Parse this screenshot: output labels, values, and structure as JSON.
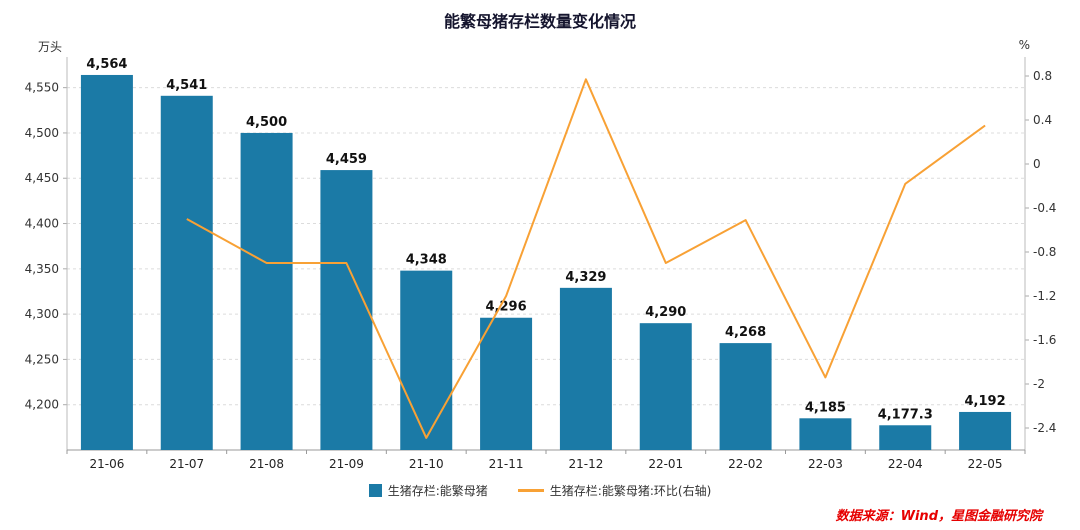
{
  "chart_data": {
    "type": "bar+line",
    "title": "能繁母猪存栏数量变化情况",
    "categories": [
      "21-06",
      "21-07",
      "21-08",
      "21-09",
      "21-10",
      "21-11",
      "21-12",
      "22-01",
      "22-02",
      "22-03",
      "22-04",
      "22-05"
    ],
    "series": [
      {
        "name": "生猪存栏:能繁母猪",
        "type": "bar",
        "axis": "left",
        "color": "#1b7aa6",
        "values": [
          4564,
          4541,
          4500,
          4459,
          4348,
          4296,
          4329,
          4290,
          4268,
          4185,
          4177.3,
          4192
        ],
        "value_labels": [
          "4,564",
          "4,541",
          "4,500",
          "4,459",
          "4,348",
          "4,296",
          "4,329",
          "4,290",
          "4,268",
          "4,185",
          "4,177.3",
          "4,192"
        ]
      },
      {
        "name": "生猪存栏:能繁母猪:环比(右轴)",
        "type": "line",
        "axis": "right",
        "color": "#f8a135",
        "values": [
          null,
          -0.5,
          -0.9,
          -0.9,
          -2.49,
          -1.2,
          0.77,
          -0.9,
          -0.51,
          -1.94,
          -0.18,
          0.35
        ]
      }
    ],
    "left_axis": {
      "unit": "万头",
      "min": 4150,
      "max": 4575,
      "ticks": [
        4200,
        4250,
        4300,
        4350,
        4400,
        4450,
        4500,
        4550
      ],
      "tick_labels": [
        "4,200",
        "4,250",
        "4,300",
        "4,350",
        "4,400",
        "4,450",
        "4,500",
        "4,550"
      ]
    },
    "right_axis": {
      "unit": "%",
      "min": -2.6,
      "max": 0.9,
      "ticks": [
        -2.4,
        -2,
        -1.6,
        -1.2,
        -0.8,
        -0.4,
        0,
        0.4,
        0.8
      ],
      "tick_labels": [
        "-2.4",
        "-2",
        "-1.6",
        "-1.2",
        "-0.8",
        "-0.4",
        "0",
        "0.4",
        "0.8"
      ]
    },
    "grid": true,
    "legend_position": "bottom"
  },
  "footer": {
    "source": "数据来源：Wind，星图金融研究院"
  }
}
